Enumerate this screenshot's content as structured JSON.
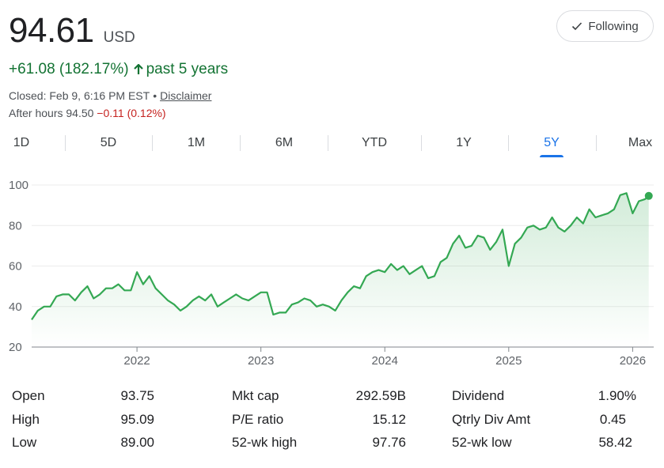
{
  "header": {
    "price": "94.61",
    "currency": "USD",
    "follow_label": "Following",
    "change": "+61.08 (182.17%)",
    "change_period": "past 5 years",
    "closed_text": "Closed: Feb 9, 6:16 PM EST",
    "disclaimer": "Disclaimer",
    "after_hours_label": "After hours 94.50",
    "after_hours_change": "−0.11 (0.12%)"
  },
  "tabs": [
    {
      "label": "1D",
      "active": false
    },
    {
      "label": "5D",
      "active": false
    },
    {
      "label": "1M",
      "active": false
    },
    {
      "label": "6M",
      "active": false
    },
    {
      "label": "YTD",
      "active": false
    },
    {
      "label": "1Y",
      "active": false
    },
    {
      "label": "5Y",
      "active": true
    },
    {
      "label": "Max",
      "active": false
    }
  ],
  "colors": {
    "positive": "#137333",
    "negative": "#c5221f",
    "line": "#34a853",
    "accent": "#1a73e8"
  },
  "chart_data": {
    "type": "area",
    "y_ticks": [
      "100",
      "80",
      "60",
      "40",
      "20"
    ],
    "ylim": [
      20,
      100
    ],
    "x_ticks": [
      "2022",
      "2023",
      "2024",
      "2025",
      "2026"
    ],
    "x_tick_positions": [
      2022,
      2023,
      2024,
      2025,
      2026
    ],
    "xlim": [
      2021.15,
      2026.17
    ],
    "series": [
      {
        "x": [
          2021.15,
          2021.2,
          2021.25,
          2021.3,
          2021.35,
          2021.4,
          2021.45,
          2021.5,
          2021.55,
          2021.6,
          2021.65,
          2021.7,
          2021.75,
          2021.8,
          2021.85,
          2021.9,
          2021.95,
          2022.0,
          2022.05,
          2022.1,
          2022.15,
          2022.2,
          2022.25,
          2022.3,
          2022.35,
          2022.4,
          2022.45,
          2022.5,
          2022.55,
          2022.6,
          2022.65,
          2022.7,
          2022.75,
          2022.8,
          2022.85,
          2022.9,
          2022.95,
          2023.0,
          2023.05,
          2023.1,
          2023.15,
          2023.2,
          2023.25,
          2023.3,
          2023.35,
          2023.4,
          2023.45,
          2023.5,
          2023.55,
          2023.6,
          2023.65,
          2023.7,
          2023.75,
          2023.8,
          2023.85,
          2023.9,
          2023.95,
          2024.0,
          2024.05,
          2024.1,
          2024.15,
          2024.2,
          2024.25,
          2024.3,
          2024.35,
          2024.4,
          2024.45,
          2024.5,
          2024.55,
          2024.6,
          2024.65,
          2024.7,
          2024.75,
          2024.8,
          2024.85,
          2024.9,
          2024.95,
          2025.0,
          2025.05,
          2025.1,
          2025.15,
          2025.2,
          2025.25,
          2025.3,
          2025.35,
          2025.4,
          2025.45,
          2025.5,
          2025.55,
          2025.6,
          2025.65,
          2025.7,
          2025.75,
          2025.8,
          2025.85,
          2025.9,
          2025.95,
          2026.0,
          2026.05,
          2026.1,
          2026.13
        ],
        "values": [
          33.5,
          38,
          40,
          40,
          45,
          46,
          46,
          43,
          47,
          50,
          44,
          46,
          49,
          49,
          51,
          48,
          48,
          57,
          51,
          55,
          49,
          46,
          43,
          41,
          38,
          40,
          43,
          45,
          43,
          46,
          40,
          42,
          44,
          46,
          44,
          43,
          45,
          47,
          47,
          36,
          37,
          37,
          41,
          42,
          44,
          43,
          40,
          41,
          40,
          38,
          43,
          47,
          50,
          49,
          55,
          57,
          58,
          57,
          61,
          58,
          60,
          56,
          58,
          60,
          54,
          55,
          62,
          64,
          71,
          75,
          69,
          70,
          75,
          74,
          68,
          72,
          78,
          60,
          71,
          74,
          79,
          80,
          78,
          79,
          84,
          79,
          77,
          80,
          84,
          81,
          88,
          84,
          85,
          86,
          88,
          95,
          96,
          86,
          92,
          93,
          94.61
        ]
      }
    ],
    "last_value": 94.61
  },
  "stats": [
    {
      "label": "Open",
      "value": "93.75"
    },
    {
      "label": "High",
      "value": "95.09"
    },
    {
      "label": "Low",
      "value": "89.00"
    },
    {
      "label": "Mkt cap",
      "value": "292.59B"
    },
    {
      "label": "P/E ratio",
      "value": "15.12"
    },
    {
      "label": "52-wk high",
      "value": "97.76"
    },
    {
      "label": "Dividend",
      "value": "1.90%"
    },
    {
      "label": "Qtrly Div Amt",
      "value": "0.45"
    },
    {
      "label": "52-wk low",
      "value": "58.42"
    }
  ]
}
